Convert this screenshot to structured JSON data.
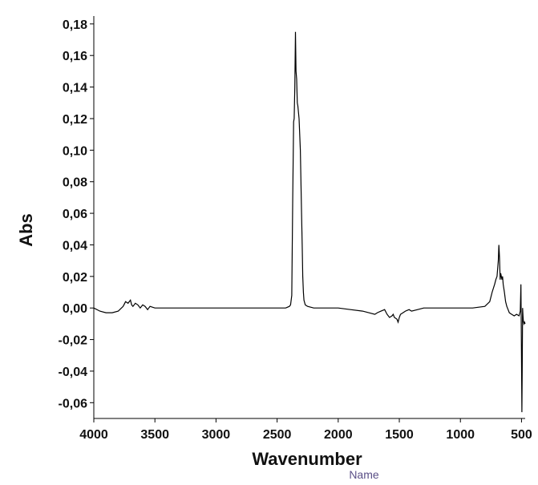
{
  "chart_data": {
    "type": "line",
    "xlabel": "Wavenumber",
    "ylabel": "Abs",
    "xlim": [
      4000,
      470
    ],
    "ylim": [
      -0.07,
      0.185
    ],
    "x_ticks": [
      4000,
      3500,
      3000,
      2500,
      2000,
      1500,
      1000,
      500
    ],
    "x_tick_labels": [
      "4000",
      "3500",
      "3000",
      "2500",
      "2000",
      "1500",
      "1000",
      "500"
    ],
    "y_ticks": [
      0.18,
      0.16,
      0.14,
      0.12,
      0.1,
      0.08,
      0.06,
      0.04,
      0.02,
      0.0,
      -0.02,
      -0.04,
      -0.06
    ],
    "y_tick_labels": [
      "0,18",
      "0,16",
      "0,14",
      "0,12",
      "0,10",
      "0,08",
      "0,06",
      "0,04",
      "0,02",
      "0,00",
      "-0,02",
      "-0,04",
      "-0,06"
    ],
    "grid": false,
    "line_color": "#000000",
    "series": [
      {
        "x": [
          4000,
          3950,
          3900,
          3850,
          3800,
          3760,
          3740,
          3720,
          3700,
          3690,
          3680,
          3660,
          3640,
          3620,
          3600,
          3580,
          3560,
          3540,
          3500,
          3400,
          3300,
          3200,
          3100,
          3000,
          2900,
          2800,
          2700,
          2600,
          2500,
          2430,
          2400,
          2390,
          2380,
          2372,
          2365,
          2360,
          2355,
          2350,
          2345,
          2340,
          2335,
          2330,
          2320,
          2310,
          2300,
          2295,
          2290,
          2285,
          2280,
          2270,
          2250,
          2200,
          2100,
          2000,
          1900,
          1800,
          1750,
          1700,
          1680,
          1650,
          1620,
          1600,
          1580,
          1560,
          1550,
          1540,
          1520,
          1510,
          1500,
          1490,
          1470,
          1450,
          1420,
          1400,
          1350,
          1300,
          1200,
          1100,
          1000,
          900,
          800,
          760,
          740,
          720,
          710,
          700,
          690,
          685,
          680,
          675,
          670,
          665,
          660,
          655,
          650,
          640,
          630,
          620,
          610,
          600,
          580,
          560,
          540,
          520,
          510,
          505,
          500,
          497,
          494,
          491,
          488,
          485,
          480,
          475,
          470
        ],
        "y": [
          0.0,
          -0.002,
          -0.003,
          -0.003,
          -0.002,
          0.001,
          0.004,
          0.003,
          0.005,
          0.002,
          0.001,
          0.003,
          0.002,
          0.0,
          0.002,
          0.001,
          -0.001,
          0.001,
          0.0,
          0.0,
          0.0,
          0.0,
          0.0,
          0.0,
          0.0,
          0.0,
          0.0,
          0.0,
          0.0,
          0.0,
          0.001,
          0.002,
          0.008,
          0.07,
          0.118,
          0.12,
          0.14,
          0.175,
          0.15,
          0.145,
          0.13,
          0.128,
          0.12,
          0.1,
          0.06,
          0.04,
          0.02,
          0.01,
          0.005,
          0.002,
          0.001,
          0.0,
          0.0,
          0.0,
          -0.001,
          -0.002,
          -0.003,
          -0.004,
          -0.003,
          -0.002,
          -0.001,
          -0.004,
          -0.006,
          -0.005,
          -0.004,
          -0.006,
          -0.007,
          -0.009,
          -0.006,
          -0.004,
          -0.003,
          -0.002,
          -0.001,
          -0.002,
          -0.001,
          0.0,
          0.0,
          0.0,
          0.0,
          0.0,
          0.001,
          0.004,
          0.01,
          0.015,
          0.018,
          0.02,
          0.03,
          0.04,
          0.032,
          0.018,
          0.022,
          0.02,
          0.018,
          0.02,
          0.015,
          0.01,
          0.004,
          0.001,
          -0.001,
          -0.003,
          -0.004,
          -0.005,
          -0.004,
          -0.005,
          -0.002,
          0.015,
          -0.03,
          -0.066,
          -0.04,
          0.0,
          -0.005,
          -0.008,
          -0.01,
          -0.009,
          -0.01
        ]
      }
    ],
    "annotations": [
      "Name"
    ]
  }
}
